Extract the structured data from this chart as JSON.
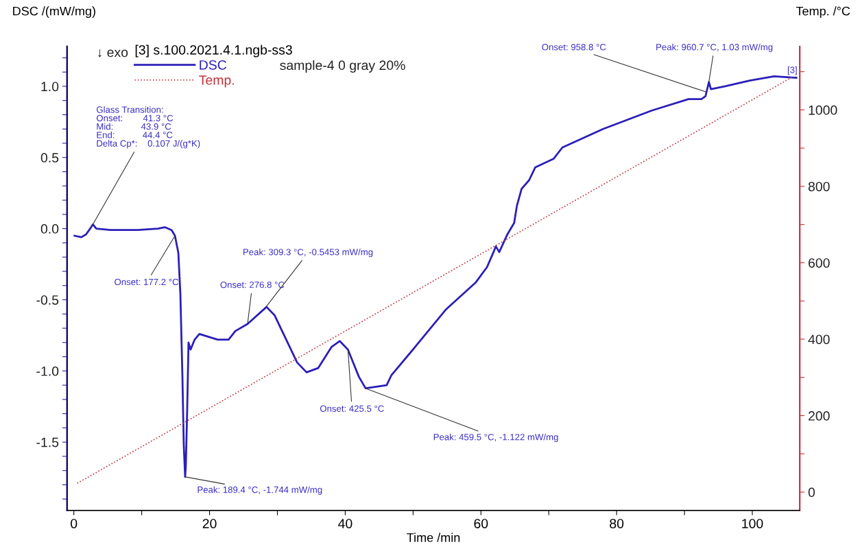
{
  "chart_data": {
    "type": "line",
    "xlabel": "Time /min",
    "ylabel": "DSC /(mW/mg)",
    "y2label": "Temp. /°C",
    "legend_title": "[3] s.100.2021.4.1.ngb-ss3",
    "legend": "top left",
    "grid": false,
    "marker": "none",
    "xlim": [
      -1,
      107
    ],
    "ylim": [
      -1.98,
      1.28
    ],
    "y2lim": [
      -48,
      1166
    ],
    "xticks": [
      0,
      {
        "value": 10,
        "label": null
      },
      20,
      {
        "value": 30,
        "label": null
      },
      40,
      {
        "value": 50,
        "label": null
      },
      60,
      {
        "value": 70,
        "label": null
      },
      80,
      {
        "value": 90,
        "label": null
      },
      100
    ],
    "yticks": [
      {
        "value": -1.9,
        "label": null
      },
      {
        "value": -1.8,
        "label": null
      },
      {
        "value": -1.7,
        "label": null
      },
      {
        "value": -1.6,
        "label": null
      },
      {
        "value": -1.5,
        "label": "-1.5"
      },
      {
        "value": -1.4,
        "label": null
      },
      {
        "value": -1.3,
        "label": null
      },
      {
        "value": -1.2,
        "label": null
      },
      {
        "value": -1.1,
        "label": null
      },
      {
        "value": -1.0,
        "label": "-1.0"
      },
      {
        "value": -0.9,
        "label": null
      },
      {
        "value": -0.8,
        "label": null
      },
      {
        "value": -0.7,
        "label": null
      },
      {
        "value": -0.6,
        "label": null
      },
      {
        "value": -0.5,
        "label": "-0.5"
      },
      {
        "value": -0.4,
        "label": null
      },
      {
        "value": -0.3,
        "label": null
      },
      {
        "value": -0.2,
        "label": null
      },
      {
        "value": -0.1,
        "label": null
      },
      {
        "value": 0.0,
        "label": "0.0"
      },
      {
        "value": 0.1,
        "label": null
      },
      {
        "value": 0.2,
        "label": null
      },
      {
        "value": 0.3,
        "label": null
      },
      {
        "value": 0.4,
        "label": null
      },
      {
        "value": 0.5,
        "label": "0.5"
      },
      {
        "value": 0.6,
        "label": null
      },
      {
        "value": 0.7,
        "label": null
      },
      {
        "value": 0.8,
        "label": null
      },
      {
        "value": 0.9,
        "label": null
      },
      {
        "value": 1.0,
        "label": "1.0"
      },
      {
        "value": 1.1,
        "label": null
      },
      {
        "value": 1.2,
        "label": null
      }
    ],
    "y2ticks": [
      0,
      {
        "value": 100,
        "label": null
      },
      200,
      {
        "value": 300,
        "label": null
      },
      400,
      {
        "value": 500,
        "label": null
      },
      600,
      {
        "value": 700,
        "label": null
      },
      800,
      {
        "value": 900,
        "label": null
      },
      1000,
      {
        "value": 1100,
        "label": null
      }
    ],
    "series": [
      {
        "name": "DSC",
        "color": "#2b1fb8",
        "line_style": "solid",
        "x": [
          0.1,
          1.1,
          1.8,
          2.4,
          2.8,
          3.3,
          5.4,
          9.4,
          12.4,
          13.4,
          14.4,
          14.9,
          15.4,
          15.7,
          16.0,
          16.2,
          16.4,
          16.5,
          16.7,
          16.9,
          17.2,
          17.8,
          18.5,
          21.2,
          22.8,
          23.8,
          25.6,
          28.4,
          29.6,
          31.6,
          32.9,
          34.3,
          36.0,
          38.0,
          39.2,
          40.4,
          42.0,
          43.0,
          46.1,
          46.8,
          49.8,
          54.8,
          59.2,
          60.9,
          61.9,
          62.2,
          62.7,
          63.9,
          64.9,
          65.3,
          66.0,
          67.1,
          68.0,
          70.7,
          72.0,
          78.0,
          85.2,
          90.6,
          92.5,
          93.1,
          93.6,
          93.9,
          96.0,
          99.6,
          103.2,
          106.5
        ],
        "values": [
          -0.05,
          -0.06,
          -0.04,
          0.0,
          0.03,
          0.0,
          -0.01,
          -0.01,
          0.0,
          0.01,
          -0.01,
          -0.05,
          -0.17,
          -0.46,
          -1.04,
          -1.52,
          -1.744,
          -1.67,
          -1.28,
          -0.8,
          -0.85,
          -0.78,
          -0.74,
          -0.78,
          -0.78,
          -0.72,
          -0.67,
          -0.55,
          -0.61,
          -0.81,
          -0.94,
          -1.01,
          -0.98,
          -0.83,
          -0.79,
          -0.85,
          -1.04,
          -1.122,
          -1.1,
          -1.03,
          -0.86,
          -0.57,
          -0.38,
          -0.27,
          -0.16,
          -0.125,
          -0.165,
          -0.04,
          0.04,
          0.16,
          0.28,
          0.34,
          0.43,
          0.49,
          0.57,
          0.7,
          0.83,
          0.91,
          0.91,
          0.93,
          1.03,
          0.98,
          1.0,
          1.04,
          1.07,
          1.06
        ]
      },
      {
        "name": "Temp.",
        "color": "#c0303a",
        "line_style": "dotted",
        "axis": "y2",
        "x": [
          0.5,
          106.0
        ],
        "values": [
          23,
          1087
        ]
      }
    ],
    "annotations": [
      "↓ exo",
      "sample-4 0 gray 20%",
      {
        "text": "Glass Transition:\nOnset:        41.3 °C\nMid:           43.9 °C\nEnd:           44.4 °C\nDelta Cp*:    0.107 J/(g*K)",
        "x": 2.8,
        "y": 0.03
      },
      {
        "text": "Onset: 177.2 °C",
        "x": 14.9,
        "y": -0.05
      },
      {
        "text": "Peak: 189.4 °C, -1.744 mW/mg",
        "x": 16.4,
        "y": -1.744
      },
      {
        "text": "Onset: 276.8 °C",
        "x": 25.6,
        "y": -0.67
      },
      {
        "text": "Peak: 309.3 °C, -0.5453 mW/mg",
        "x": 28.4,
        "y": -0.5453
      },
      {
        "text": "Onset: 425.5 °C",
        "x": 40.4,
        "y": -0.85
      },
      {
        "text": "Peak: 459.5 °C, -1.122 mW/mg",
        "x": 43.0,
        "y": -1.122
      },
      {
        "text": "Onset: 958.8 °C",
        "x": 93.2,
        "y": 0.96
      },
      {
        "text": "Peak: 960.7 °C, 1.03 mW/mg",
        "x": 93.6,
        "y": 1.03
      },
      {
        "text": "[3]",
        "x": 106.5,
        "y": 1.06
      }
    ]
  }
}
